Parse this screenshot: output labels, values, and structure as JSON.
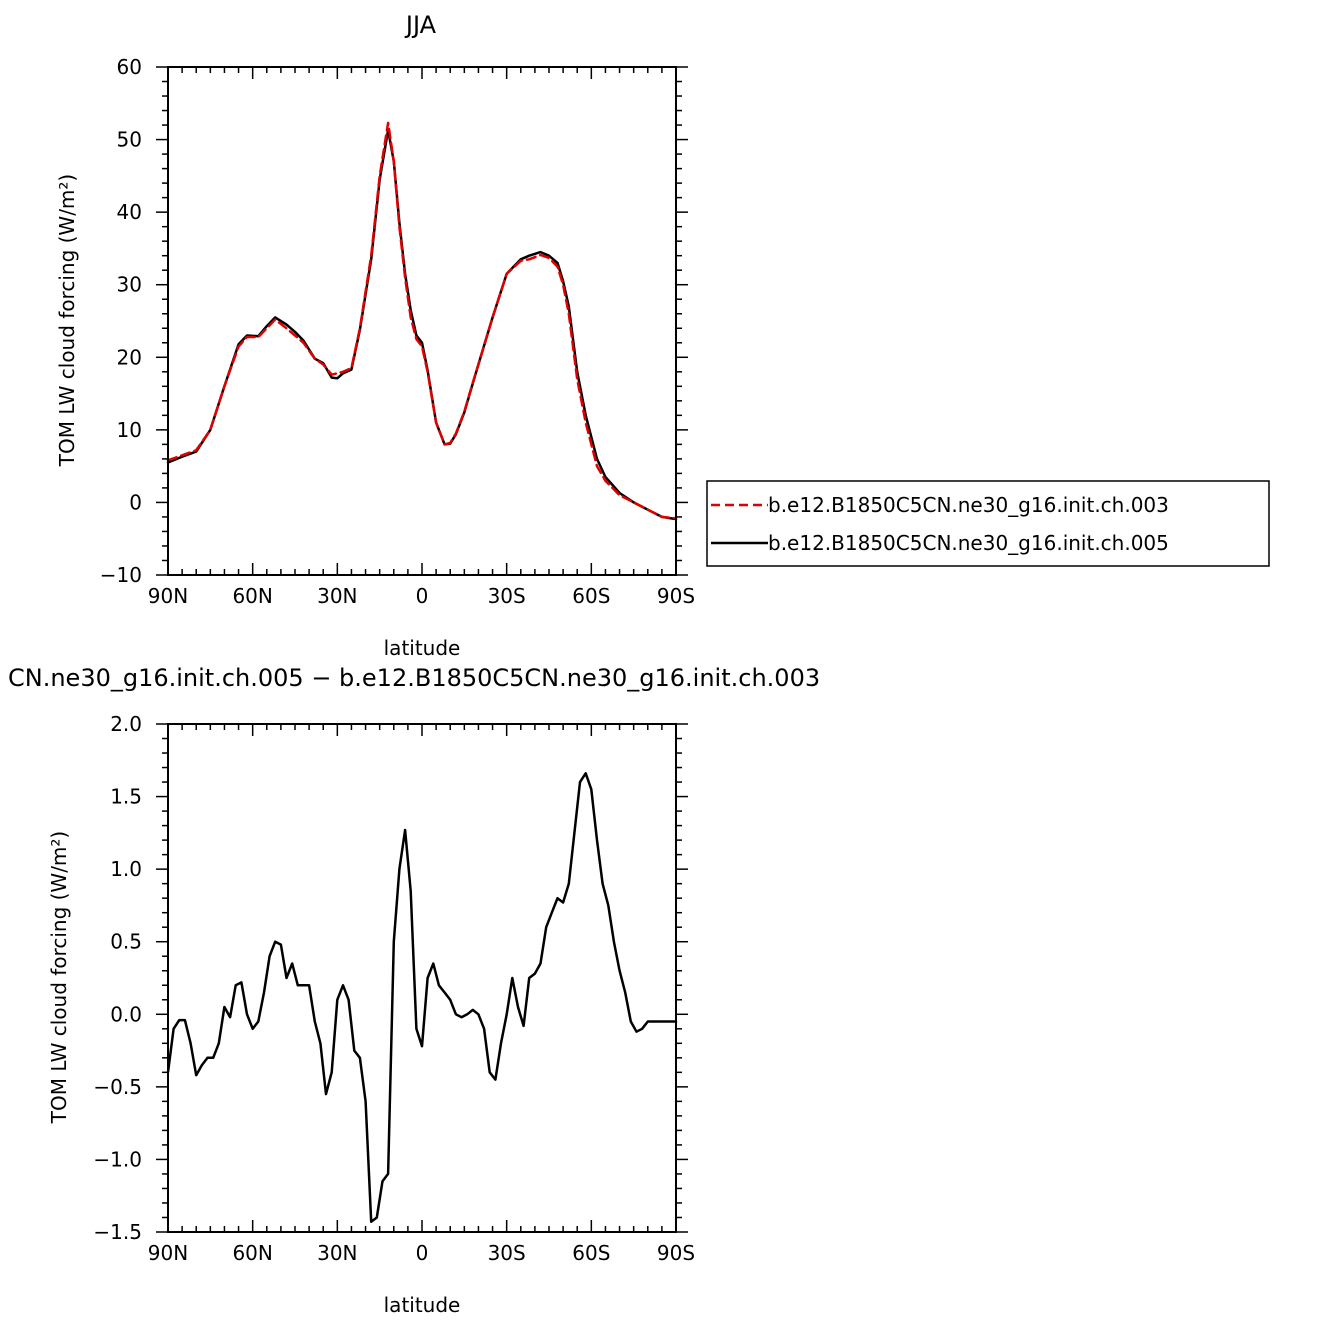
{
  "chart_data": [
    {
      "type": "line",
      "title": "JJA",
      "xlabel": "latitude",
      "ylabel": "TOM LW cloud forcing (W/m²)",
      "xlim": [
        90,
        -90
      ],
      "ylim": [
        -10,
        60
      ],
      "xticks": [
        90,
        60,
        30,
        0,
        -30,
        -60,
        -90
      ],
      "xtick_labels": [
        "90N",
        "60N",
        "30N",
        "0",
        "30S",
        "60S",
        "90S"
      ],
      "yticks": [
        -10,
        0,
        10,
        20,
        30,
        40,
        50,
        60
      ],
      "ytick_labels": [
        "−10",
        "0",
        "10",
        "20",
        "30",
        "40",
        "50",
        "60"
      ],
      "grid": false,
      "legend_position": "right",
      "series": [
        {
          "name": "b.e12.B1850C5CN.ne30_g16.init.ch.003",
          "color": "#e00000",
          "dash": "dashed",
          "x": [
            90,
            85,
            80,
            75,
            70,
            65,
            62,
            58,
            55,
            52,
            48,
            45,
            42,
            38,
            35,
            32,
            30,
            28,
            25,
            22,
            18,
            15,
            12,
            10,
            8,
            6,
            4,
            2,
            0,
            -2,
            -5,
            -8,
            -10,
            -12,
            -15,
            -18,
            -20,
            -25,
            -30,
            -35,
            -38,
            -42,
            -45,
            -48,
            -50,
            -52,
            -55,
            -58,
            -62,
            -65,
            -70,
            -75,
            -80,
            -85,
            -90
          ],
          "y": [
            5.8,
            6.5,
            7.2,
            10,
            16,
            21.5,
            22.8,
            22.8,
            24,
            25.2,
            24,
            23,
            22,
            19.8,
            19,
            17.6,
            17.8,
            18,
            18.5,
            24,
            34,
            45,
            52.3,
            47,
            38,
            31,
            25.5,
            22.5,
            21.5,
            18,
            11,
            8,
            8.2,
            9.5,
            12.5,
            16.5,
            19,
            25.5,
            31.5,
            33.3,
            33.5,
            34.1,
            33.7,
            32.5,
            30,
            26,
            17,
            11,
            5,
            3,
            1,
            0,
            -1,
            -2,
            -2.2
          ]
        },
        {
          "name": "b.e12.B1850C5CN.ne30_g16.init.ch.005",
          "color": "#000000",
          "dash": "solid",
          "x": [
            90,
            85,
            80,
            75,
            70,
            65,
            62,
            58,
            55,
            52,
            48,
            45,
            42,
            38,
            35,
            32,
            30,
            28,
            25,
            22,
            18,
            15,
            12,
            10,
            8,
            6,
            4,
            2,
            0,
            -2,
            -5,
            -8,
            -10,
            -12,
            -15,
            -18,
            -20,
            -25,
            -30,
            -35,
            -38,
            -42,
            -45,
            -48,
            -50,
            -52,
            -55,
            -58,
            -62,
            -65,
            -70,
            -75,
            -80,
            -85,
            -90
          ],
          "y": [
            5.5,
            6.3,
            7,
            10,
            16,
            21.8,
            23,
            22.9,
            24.3,
            25.5,
            24.5,
            23.5,
            22.3,
            19.8,
            19.2,
            17.2,
            17.1,
            17.8,
            18.3,
            23.8,
            33.5,
            44.5,
            51.3,
            47,
            38.5,
            31.5,
            26.5,
            23,
            22,
            18.2,
            11,
            8,
            8.1,
            9.4,
            12.4,
            16.4,
            19,
            25.5,
            31.5,
            33.5,
            34,
            34.5,
            34,
            33,
            30.5,
            27,
            18,
            12,
            6,
            3.5,
            1.3,
            0,
            -1,
            -2,
            -2.3
          ]
        }
      ]
    },
    {
      "type": "line",
      "title": "CN.ne30_g16.init.ch.005 − b.e12.B1850C5CN.ne30_g16.init.ch.003",
      "xlabel": "latitude",
      "ylabel": "TOM LW cloud forcing (W/m²)",
      "xlim": [
        90,
        -90
      ],
      "ylim": [
        -1.5,
        2.0
      ],
      "xticks": [
        90,
        60,
        30,
        0,
        -30,
        -60,
        -90
      ],
      "xtick_labels": [
        "90N",
        "60N",
        "30N",
        "0",
        "30S",
        "60S",
        "90S"
      ],
      "yticks": [
        -1.5,
        -1.0,
        -0.5,
        0.0,
        0.5,
        1.0,
        1.5,
        2.0
      ],
      "ytick_labels": [
        "−1.5",
        "−1.0",
        "−0.5",
        "0.0",
        "0.5",
        "1.0",
        "1.5",
        "2.0"
      ],
      "grid": false,
      "series": [
        {
          "color": "#000000",
          "dash": "solid",
          "x": [
            90,
            88,
            86,
            84,
            82,
            80,
            78,
            76,
            74,
            72,
            70,
            68,
            66,
            64,
            62,
            60,
            58,
            56,
            54,
            52,
            50,
            48,
            46,
            44,
            42,
            40,
            38,
            36,
            34,
            32,
            30,
            28,
            26,
            24,
            22,
            20,
            18,
            16,
            14,
            12,
            10,
            8,
            6,
            4,
            2,
            0,
            -2,
            -4,
            -6,
            -8,
            -10,
            -12,
            -14,
            -16,
            -18,
            -20,
            -22,
            -24,
            -26,
            -28,
            -30,
            -32,
            -34,
            -36,
            -38,
            -40,
            -42,
            -44,
            -46,
            -48,
            -50,
            -52,
            -54,
            -56,
            -58,
            -60,
            -62,
            -64,
            -66,
            -68,
            -70,
            -72,
            -74,
            -76,
            -78,
            -80,
            -82,
            -84,
            -86,
            -88,
            -90
          ],
          "y": [
            -0.4,
            -0.1,
            -0.04,
            -0.04,
            -0.2,
            -0.42,
            -0.35,
            -0.3,
            -0.3,
            -0.2,
            0.05,
            -0.02,
            0.2,
            0.22,
            0.0,
            -0.1,
            -0.05,
            0.15,
            0.4,
            0.5,
            0.48,
            0.25,
            0.35,
            0.2,
            0.2,
            0.2,
            -0.05,
            -0.2,
            -0.55,
            -0.4,
            0.1,
            0.2,
            0.1,
            -0.25,
            -0.3,
            -0.6,
            -1.43,
            -1.4,
            -1.15,
            -1.1,
            0.5,
            1.0,
            1.27,
            0.85,
            -0.1,
            -0.22,
            0.25,
            0.35,
            0.2,
            0.15,
            0.1,
            0.0,
            -0.02,
            0.0,
            0.03,
            0.0,
            -0.1,
            -0.4,
            -0.45,
            -0.2,
            0.0,
            0.25,
            0.05,
            -0.08,
            0.25,
            0.28,
            0.35,
            0.6,
            0.7,
            0.8,
            0.77,
            0.9,
            1.25,
            1.6,
            1.66,
            1.55,
            1.2,
            0.9,
            0.75,
            0.5,
            0.3,
            0.15,
            -0.05,
            -0.12,
            -0.1,
            -0.05,
            -0.05,
            -0.05,
            -0.05,
            -0.05,
            -0.05
          ]
        }
      ]
    }
  ]
}
